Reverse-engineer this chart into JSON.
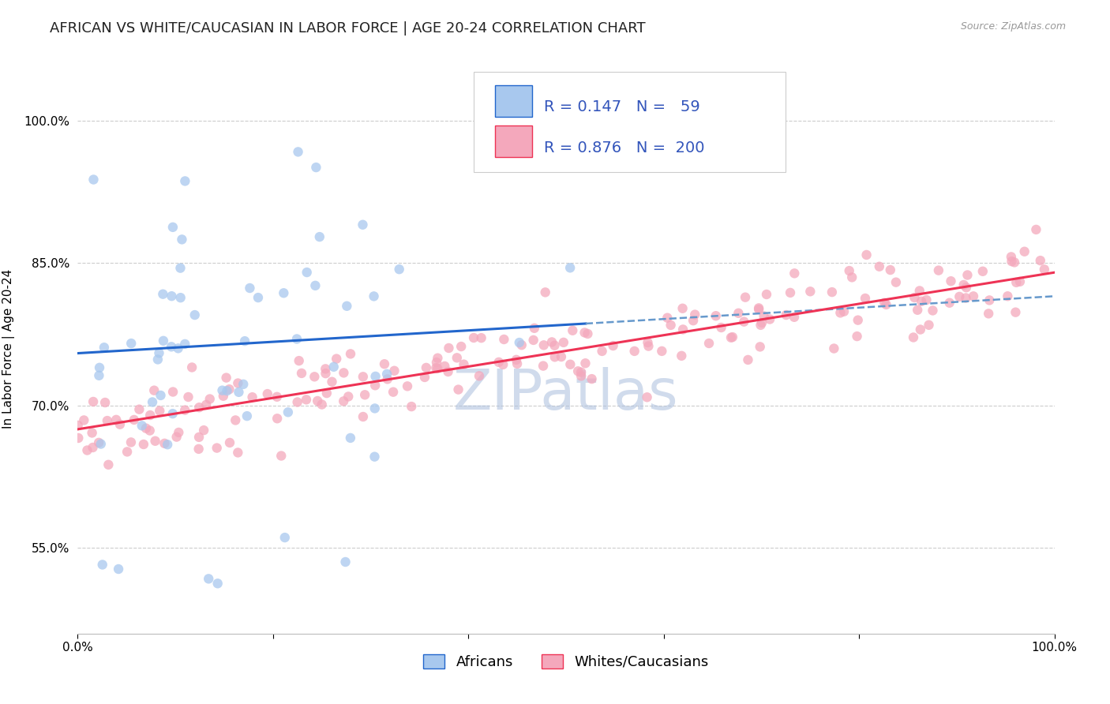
{
  "title": "AFRICAN VS WHITE/CAUCASIAN IN LABOR FORCE | AGE 20-24 CORRELATION CHART",
  "source": "Source: ZipAtlas.com",
  "ylabel": "In Labor Force | Age 20-24",
  "xlim": [
    0,
    1
  ],
  "ylim": [
    0.46,
    1.06
  ],
  "yticks": [
    0.55,
    0.7,
    0.85,
    1.0
  ],
  "ytick_labels": [
    "55.0%",
    "70.0%",
    "85.0%",
    "100.0%"
  ],
  "xticks": [
    0.0,
    0.2,
    0.4,
    0.6,
    0.8,
    1.0
  ],
  "xtick_labels": [
    "0.0%",
    "",
    "",
    "",
    "",
    "100.0%"
  ],
  "african_color": "#A8C8EE",
  "white_color": "#F4A8BC",
  "trendline_african_solid_color": "#2266CC",
  "trendline_african_dash_color": "#6699CC",
  "trendline_white_color": "#EE3355",
  "background_color": "#FFFFFF",
  "grid_color": "#CCCCCC",
  "african_R": 0.147,
  "african_N": 59,
  "white_R": 0.876,
  "white_N": 200,
  "legend_text_color": "#3355BB",
  "watermark": "ZIPatlas",
  "watermark_color": "#AABEDD",
  "title_fontsize": 13,
  "axis_label_fontsize": 11,
  "tick_fontsize": 11,
  "legend_fontsize": 14,
  "african_trendline_x_solid_end": 0.52,
  "african_trendline_x_dash_start": 0.52,
  "white_trendline_x_start": 0.0,
  "white_trendline_x_end": 1.0,
  "african_trendline_intercept": 0.755,
  "african_trendline_slope": 0.06,
  "white_trendline_intercept": 0.675,
  "white_trendline_slope": 0.165
}
